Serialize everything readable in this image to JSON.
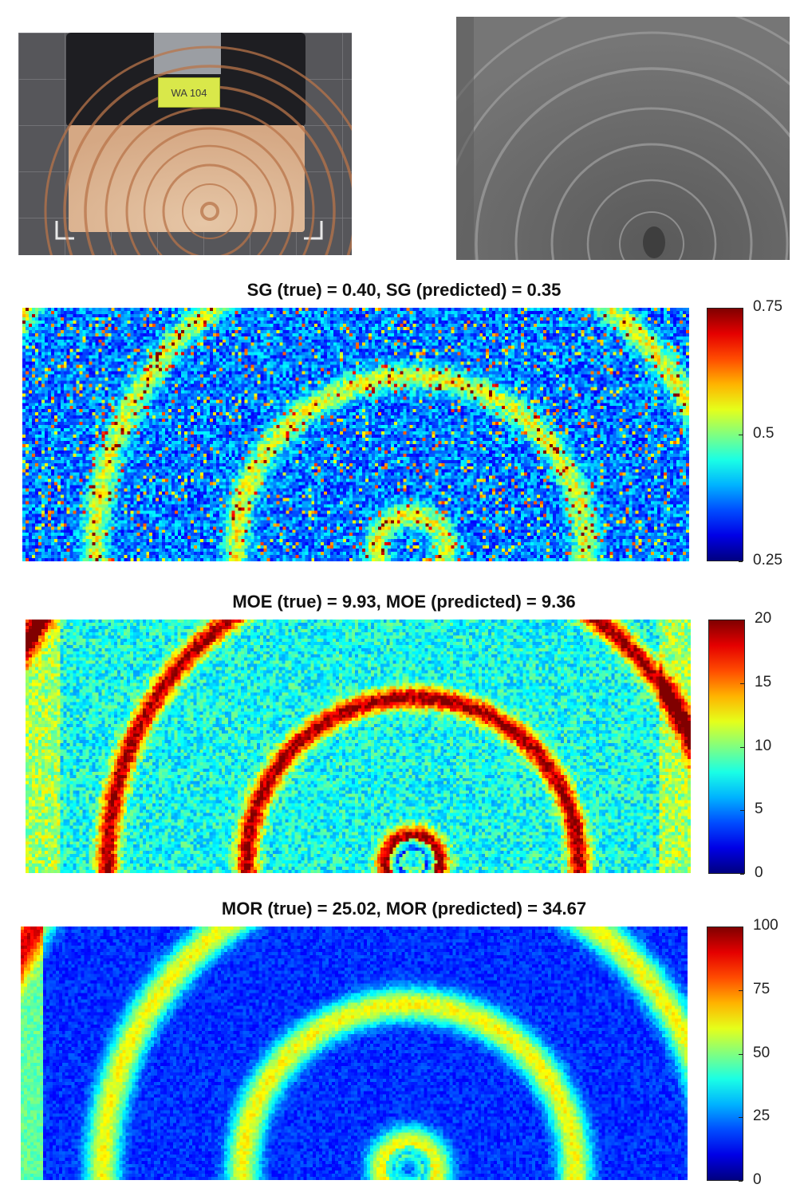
{
  "images": {
    "photo": {
      "label_text": "WA 104"
    },
    "xray": {}
  },
  "chart_data": [
    {
      "type": "heatmap",
      "title": "SG (true) = 0.40, SG (predicted) = 0.35",
      "colormap": "jet",
      "clim": [
        0.25,
        0.75
      ],
      "colorbar_ticks": [
        0.25,
        0.5,
        0.75
      ],
      "colorbar_tick_labels": [
        "0.25",
        "0.5",
        "0.75"
      ],
      "true_value": 0.4,
      "predicted_value": 0.35
    },
    {
      "type": "heatmap",
      "title": "MOE (true) = 9.93, MOE (predicted) = 9.36",
      "colormap": "jet",
      "clim": [
        0,
        20
      ],
      "colorbar_ticks": [
        0,
        5,
        10,
        15,
        20
      ],
      "colorbar_tick_labels": [
        "0",
        "5",
        "10",
        "15",
        "20"
      ],
      "true_value": 9.93,
      "predicted_value": 9.36
    },
    {
      "type": "heatmap",
      "title": "MOR (true) = 25.02, MOR (predicted) = 34.67",
      "colormap": "jet",
      "clim": [
        0,
        100
      ],
      "colorbar_ticks": [
        0,
        25,
        50,
        75,
        100
      ],
      "colorbar_tick_labels": [
        "0",
        "25",
        "50",
        "75",
        "100"
      ],
      "true_value": 25.02,
      "predicted_value": 34.67
    }
  ]
}
